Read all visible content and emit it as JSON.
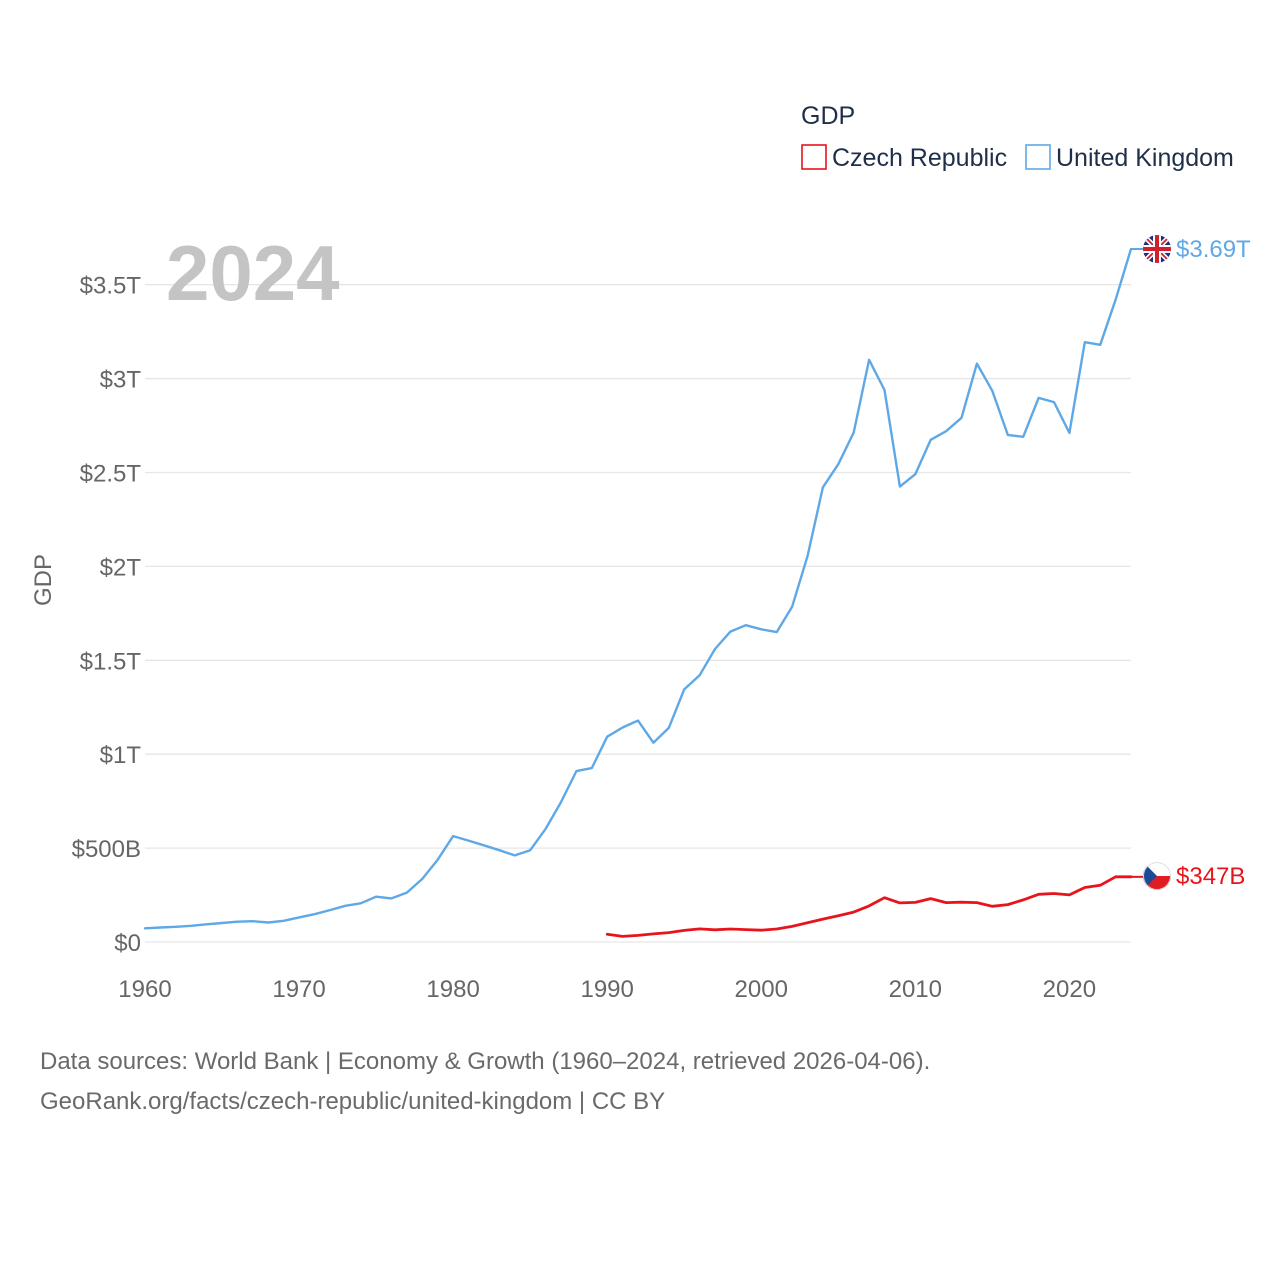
{
  "chart_data": {
    "type": "line",
    "title": "GDP",
    "year_label": "2024",
    "xlabel": "",
    "ylabel": "GDP",
    "xlim": [
      1960,
      2024
    ],
    "ylim": [
      0,
      3.69
    ],
    "x_ticks": [
      1960,
      1970,
      1980,
      1990,
      2000,
      2010,
      2020
    ],
    "x_tick_labels": [
      "1960",
      "1970",
      "1980",
      "1990",
      "2000",
      "2010",
      "2020"
    ],
    "y_ticks": [
      0,
      0.5,
      1,
      1.5,
      2,
      2.5,
      3,
      3.5
    ],
    "y_tick_labels": [
      "$0",
      "$500B",
      "$1T",
      "$1.5T",
      "$2T",
      "$2.5T",
      "$3T",
      "$3.5T"
    ],
    "units": "trillions of US dollars",
    "legend_title": "GDP",
    "legend_position": "top-right",
    "series": [
      {
        "name": "Czech Republic",
        "color": "#e8141c",
        "end_label": "$347B",
        "flag": "czech-flag",
        "x": [
          1990,
          1991,
          1992,
          1993,
          1994,
          1995,
          1996,
          1997,
          1998,
          1999,
          2000,
          2001,
          2002,
          2003,
          2004,
          2005,
          2006,
          2007,
          2008,
          2009,
          2010,
          2011,
          2012,
          2013,
          2014,
          2015,
          2016,
          2017,
          2018,
          2019,
          2020,
          2021,
          2022,
          2023,
          2024
        ],
        "values": [
          0.041,
          0.03,
          0.035,
          0.043,
          0.05,
          0.062,
          0.07,
          0.065,
          0.069,
          0.066,
          0.063,
          0.069,
          0.083,
          0.102,
          0.122,
          0.14,
          0.159,
          0.192,
          0.236,
          0.208,
          0.211,
          0.231,
          0.21,
          0.212,
          0.21,
          0.19,
          0.199,
          0.224,
          0.254,
          0.258,
          0.251,
          0.29,
          0.302,
          0.347,
          0.347
        ]
      },
      {
        "name": "United Kingdom",
        "color": "#5fa8e6",
        "end_label": "$3.69T",
        "flag": "uk-flag",
        "x": [
          1960,
          1961,
          1962,
          1963,
          1964,
          1965,
          1966,
          1967,
          1968,
          1969,
          1970,
          1971,
          1972,
          1973,
          1974,
          1975,
          1976,
          1977,
          1978,
          1979,
          1980,
          1981,
          1982,
          1983,
          1984,
          1985,
          1986,
          1987,
          1988,
          1989,
          1990,
          1991,
          1992,
          1993,
          1994,
          1995,
          1996,
          1997,
          1998,
          1999,
          2000,
          2001,
          2002,
          2003,
          2004,
          2005,
          2006,
          2007,
          2008,
          2009,
          2010,
          2011,
          2012,
          2013,
          2014,
          2015,
          2016,
          2017,
          2018,
          2019,
          2020,
          2021,
          2022,
          2023,
          2024
        ],
        "values": [
          0.073,
          0.077,
          0.081,
          0.086,
          0.094,
          0.101,
          0.108,
          0.111,
          0.104,
          0.113,
          0.131,
          0.148,
          0.17,
          0.193,
          0.206,
          0.241,
          0.232,
          0.263,
          0.336,
          0.438,
          0.564,
          0.54,
          0.515,
          0.489,
          0.461,
          0.489,
          0.602,
          0.745,
          0.91,
          0.926,
          1.093,
          1.142,
          1.179,
          1.061,
          1.14,
          1.345,
          1.42,
          1.56,
          1.653,
          1.687,
          1.665,
          1.65,
          1.785,
          2.054,
          2.421,
          2.544,
          2.713,
          3.1,
          2.939,
          2.425,
          2.491,
          2.674,
          2.72,
          2.791,
          3.08,
          2.935,
          2.7,
          2.69,
          2.897,
          2.875,
          2.711,
          3.194,
          3.18,
          3.42,
          3.69
        ]
      }
    ]
  },
  "footer": {
    "line1": "Data sources: World Bank | Economy & Growth (1960–2024, retrieved 2026-04-06).",
    "line2": "GeoRank.org/facts/czech-republic/united-kingdom | CC BY"
  }
}
